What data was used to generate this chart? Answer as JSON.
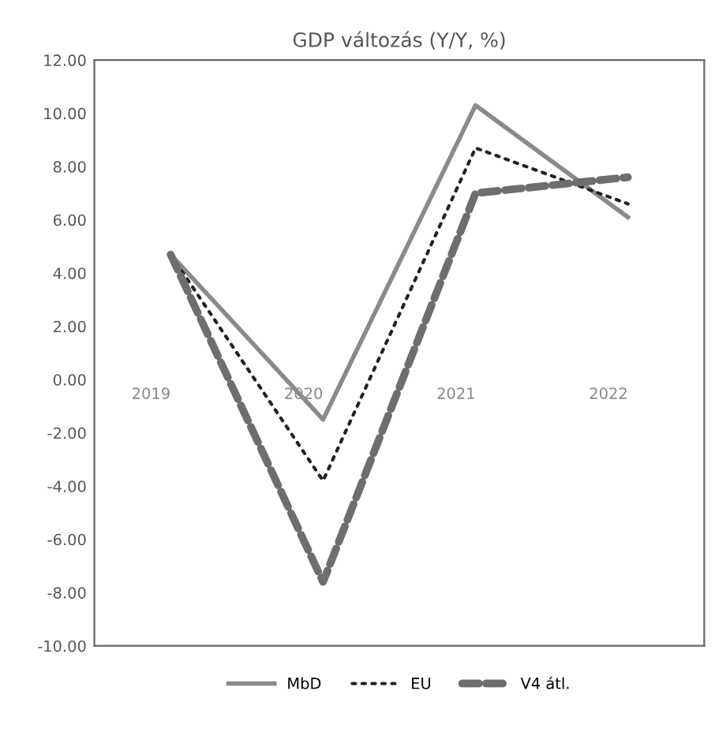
{
  "chart_data": {
    "type": "line",
    "title": "GDP változás (Y/Y, %)",
    "categories": [
      "2019",
      "2020",
      "2021",
      "2022"
    ],
    "series": [
      {
        "name": "MbD",
        "color": "#8a8a8a",
        "line_style": "solid",
        "values": [
          4.7,
          -1.5,
          10.3,
          6.1
        ]
      },
      {
        "name": "EU",
        "color": "#222222",
        "line_style": "dotted",
        "values": [
          4.7,
          -3.8,
          8.7,
          6.6
        ]
      },
      {
        "name": "V4 átl.",
        "color": "#6e6e6e",
        "line_style": "dashed",
        "values": [
          4.7,
          -7.6,
          7.0,
          7.6
        ]
      }
    ],
    "ylim": [
      -10,
      12
    ],
    "yticks": [
      {
        "value": -10,
        "label": "-10.00"
      },
      {
        "value": -8,
        "label": "-8.00"
      },
      {
        "value": -6,
        "label": "-6.00"
      },
      {
        "value": -4,
        "label": "-4.00"
      },
      {
        "value": -2,
        "label": "-2.00"
      },
      {
        "value": 0,
        "label": "0.00"
      },
      {
        "value": 2,
        "label": "2.00"
      },
      {
        "value": 4,
        "label": "4.00"
      },
      {
        "value": 6,
        "label": "6.00"
      },
      {
        "value": 8,
        "label": "8.00"
      },
      {
        "value": 10,
        "label": "10.00"
      },
      {
        "value": 12,
        "label": "12.00"
      }
    ],
    "grid": false,
    "legend": "bottom",
    "marker": "none"
  }
}
